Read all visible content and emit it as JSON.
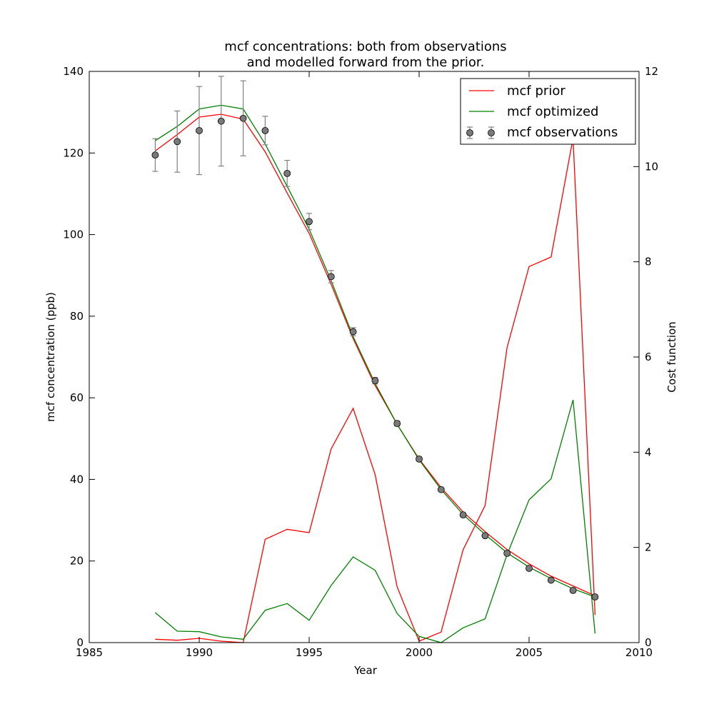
{
  "chart_data": {
    "type": "line",
    "title_lines": [
      "mcf concentrations: both from observations",
      "and modelled forward from the prior."
    ],
    "xlabel": "Year",
    "ylabel": "mcf concentration (ppb)",
    "y2label": "Cost function",
    "xlim": [
      1985,
      2010
    ],
    "ylim": [
      0,
      140
    ],
    "y2lim": [
      0,
      12
    ],
    "xticks": [
      1985,
      1990,
      1995,
      2000,
      2005,
      2010
    ],
    "yticks": [
      0,
      20,
      40,
      60,
      80,
      100,
      120,
      140
    ],
    "y2ticks": [
      0,
      2,
      4,
      6,
      8,
      10,
      12
    ],
    "legend_position": "top-right",
    "colors": {
      "prior": "#ff0000",
      "optimized": "#008000",
      "observations": "#808080",
      "errorbar": "#808080"
    },
    "x": [
      1988,
      1989,
      1990,
      1991,
      1992,
      1993,
      1994,
      1995,
      1996,
      1997,
      1998,
      1999,
      2000,
      2001,
      2002,
      2003,
      2004,
      2005,
      2006,
      2007,
      2008
    ],
    "concentration_series": [
      {
        "key": "prior",
        "name": "mcf prior",
        "values": [
          120.5,
          124.5,
          128.8,
          129.5,
          128.3,
          120.3,
          110.2,
          100.3,
          87.8,
          74.5,
          63.0,
          53.5,
          45.0,
          38.0,
          32.0,
          27.2,
          22.8,
          19.3,
          16.3,
          13.9,
          11.5
        ]
      },
      {
        "key": "optimized",
        "name": "mcf optimized",
        "values": [
          123.0,
          126.5,
          130.8,
          131.7,
          130.8,
          122.2,
          111.8,
          101.3,
          88.7,
          75.0,
          63.5,
          53.5,
          44.8,
          37.5,
          31.4,
          26.5,
          22.0,
          18.5,
          15.7,
          13.2,
          11.2
        ]
      }
    ],
    "observations": {
      "key": "observations",
      "name": "mcf observations",
      "values": [
        119.5,
        122.8,
        125.5,
        127.8,
        128.5,
        125.5,
        115.0,
        103.2,
        89.7,
        76.2,
        64.2,
        53.7,
        45.0,
        37.5,
        31.3,
        26.2,
        21.9,
        18.2,
        15.3,
        12.8,
        11.2
      ],
      "errors": [
        4.0,
        7.5,
        10.8,
        11.0,
        9.2,
        3.5,
        3.2,
        2.0,
        1.5,
        1.0,
        0.8,
        0.6,
        0.5,
        0.4,
        0.4,
        0.3,
        0.3,
        0.3,
        0.3,
        0.3,
        0.3
      ]
    },
    "cost_series": [
      {
        "key": "prior",
        "values": [
          0.07,
          0.05,
          0.09,
          0.03,
          0.0,
          2.17,
          2.38,
          2.31,
          4.07,
          4.92,
          3.53,
          1.17,
          0.03,
          0.22,
          1.95,
          2.88,
          6.2,
          7.9,
          8.1,
          10.6,
          0.58
        ]
      },
      {
        "key": "optimized",
        "values": [
          0.63,
          0.24,
          0.23,
          0.12,
          0.07,
          0.68,
          0.82,
          0.47,
          1.2,
          1.8,
          1.52,
          0.61,
          0.13,
          0.0,
          0.31,
          0.5,
          1.85,
          3.0,
          3.44,
          5.1,
          0.19
        ]
      }
    ]
  }
}
